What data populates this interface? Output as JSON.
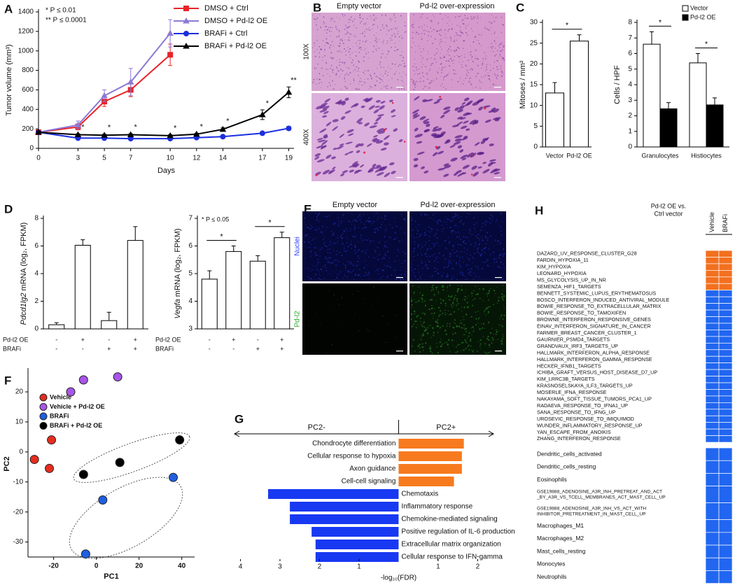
{
  "panel_labels": [
    "A",
    "B",
    "C",
    "D",
    "E",
    "F",
    "G",
    "H"
  ],
  "images": [
    {
      "title_left": "Empty vector",
      "title_right": "Pd-l2 over-expression",
      "rows": [
        "100X",
        "400X"
      ]
    },
    {
      "title_left": "Empty vector",
      "title_right": "Pd-l2 over-expression",
      "rows": [
        "Nuclei",
        "Pd-l2"
      ]
    }
  ],
  "chart_data": [
    {
      "type": "line",
      "ylabel": "Tumor volume (mm³)",
      "xlabel": "Days",
      "x": [
        0,
        3,
        5,
        7,
        10,
        12,
        14,
        17,
        19
      ],
      "xlim": [
        0,
        19.4
      ],
      "xticks": [
        0,
        3,
        5,
        7,
        10,
        12,
        14,
        17,
        19
      ],
      "ylim": [
        0,
        1400
      ],
      "yticks": [
        0,
        200,
        400,
        600,
        800,
        1000,
        1200,
        1400
      ],
      "annotations": [
        "* P ≤ 0.01",
        "** P ≤ 0.0001"
      ],
      "significance": [
        null,
        "*",
        "*",
        "*",
        "*",
        "*",
        "*",
        "*",
        "**"
      ],
      "series": [
        {
          "name": "DMSO + Ctrl",
          "color": "#e8232a",
          "marker": "square",
          "values": [
            165,
            220,
            480,
            600,
            960,
            null,
            null,
            null,
            null
          ],
          "errors": [
            10,
            30,
            50,
            70,
            110,
            null,
            null,
            null,
            null
          ]
        },
        {
          "name": "DMSO + Pd-l2 OE",
          "color": "#8e79d4",
          "marker": "triangle",
          "values": [
            165,
            240,
            540,
            680,
            1180,
            null,
            null,
            null,
            null
          ],
          "errors": [
            10,
            40,
            60,
            140,
            140,
            null,
            null,
            null,
            null
          ]
        },
        {
          "name": "BRAFi + Ctrl",
          "color": "#1b2fe0",
          "marker": "circle",
          "values": [
            165,
            105,
            105,
            100,
            100,
            110,
            120,
            155,
            205
          ],
          "errors": [
            10,
            10,
            10,
            10,
            10,
            10,
            10,
            15,
            20
          ]
        },
        {
          "name": "BRAFi + Pd-l2 OE",
          "color": "#000000",
          "marker": "triangle",
          "values": [
            165,
            140,
            135,
            140,
            130,
            145,
            195,
            345,
            575
          ],
          "errors": [
            10,
            10,
            10,
            10,
            10,
            10,
            15,
            50,
            55
          ]
        }
      ]
    },
    {
      "type": "bar",
      "ylabel": "Mitoses / mm²",
      "categories": [
        "Vector",
        "Pd-l2 OE"
      ],
      "values": [
        13,
        25.5
      ],
      "errors": [
        2.5,
        1.5
      ],
      "color": "#ffffff",
      "ylim": [
        0,
        30
      ],
      "yticks": [
        0,
        5,
        10,
        15,
        20,
        25,
        30
      ],
      "brackets": [
        {
          "label": "*",
          "from": 0,
          "to": 1
        }
      ]
    },
    {
      "type": "bar",
      "ylabel": "Cells / HPF",
      "categories": [
        "Granulocytes",
        "Histiocytes"
      ],
      "series": [
        {
          "name": "Vector",
          "color": "#ffffff",
          "values": [
            6.6,
            5.4
          ],
          "errors": [
            0.8,
            0.6
          ]
        },
        {
          "name": "Pd-l2 OE",
          "color": "#000000",
          "values": [
            2.45,
            2.7
          ],
          "errors": [
            0.4,
            0.45
          ]
        }
      ],
      "ylim": [
        0,
        8
      ],
      "yticks": [
        0,
        1,
        2,
        3,
        4,
        5,
        6,
        7,
        8
      ],
      "brackets": [
        {
          "label": "*",
          "from": 0,
          "to": 1
        },
        {
          "label": "*",
          "from": 2,
          "to": 3
        }
      ]
    },
    {
      "type": "bar",
      "ylabel_gene": "Pdcd1lg2",
      "ylabel": "mRNA (log₂, FPKM)",
      "values": [
        0.3,
        6.05,
        0.6,
        6.4
      ],
      "errors": [
        0.15,
        0.4,
        0.6,
        1.0
      ],
      "color": "#ffffff",
      "ylim": [
        0,
        8
      ],
      "yticks": [
        0,
        2,
        4,
        6,
        8
      ],
      "conditions": [
        {
          "name": "Pd-l2 OE",
          "values": [
            "-",
            "+",
            "-",
            "+"
          ]
        },
        {
          "name": "BRAFi",
          "values": [
            "-",
            "-",
            "+",
            "+"
          ]
        }
      ]
    },
    {
      "type": "bar",
      "ylabel_gene": "Vegfa",
      "ylabel": "mRNA (log₂, FPKM)",
      "values": [
        4.8,
        5.8,
        5.45,
        6.3
      ],
      "errors": [
        0.3,
        0.2,
        0.2,
        0.2
      ],
      "color": "#ffffff",
      "ylim": [
        3,
        7
      ],
      "yticks": [
        3,
        4,
        5,
        6,
        7
      ],
      "annotation": "* P ≤ 0.05",
      "brackets": [
        {
          "label": "*",
          "from": 0,
          "to": 1
        },
        {
          "label": "*",
          "from": 2,
          "to": 3
        }
      ],
      "conditions": [
        {
          "name": "Pd-l2 OE",
          "values": [
            "-",
            "+",
            "-",
            "+"
          ]
        },
        {
          "name": "BRAFi",
          "values": [
            "-",
            "-",
            "+",
            "+"
          ]
        }
      ]
    },
    {
      "type": "scatter",
      "xlabel": "PC1",
      "ylabel": "PC2",
      "xlim": [
        -32,
        46
      ],
      "xticks": [
        -20,
        0,
        20,
        40
      ],
      "ylim": [
        -35,
        27
      ],
      "yticks": [
        -30,
        -20,
        -10,
        0,
        10,
        20
      ],
      "series": [
        {
          "name": "Vehicle",
          "color": "#e52d1f",
          "x": [
            -29,
            -21,
            -22
          ],
          "values": [
            -2.5,
            4,
            -5.5
          ]
        },
        {
          "name": "Vehicle + Pd-l2 OE",
          "color": "#a855e8",
          "x": [
            -12,
            -6,
            10
          ],
          "values": [
            20,
            24,
            25
          ]
        },
        {
          "name": "BRAFi",
          "color": "#1f5fe0",
          "x": [
            3,
            36,
            -5
          ],
          "values": [
            -16,
            -8.5,
            -34
          ]
        },
        {
          "name": "BRAFi + Pd-l2 OE",
          "color": "#000000",
          "x": [
            -6,
            11,
            39
          ],
          "values": [
            -7.5,
            -3.5,
            4
          ]
        }
      ]
    },
    {
      "type": "barh",
      "xlabel": "-log₁₀(FDR)",
      "direction_labels": [
        "PC2-",
        "PC2+"
      ],
      "categories": [
        "Chondrocyte differentiation",
        "Cellular response to hypoxia",
        "Axon guidance",
        "Cell-cell signaling",
        "Chemotaxis",
        "Inflammatory response",
        "Chemokine-mediated signaling",
        "Positive regulation of IL-6 production",
        "Extracellular matrix organization",
        "Cellular response to IFN-gamma"
      ],
      "values": [
        1.65,
        1.6,
        1.6,
        1.4,
        -3.3,
        -2.75,
        -2.75,
        -2.2,
        -2.1,
        -2.1
      ],
      "positive_color": "#f77a1e",
      "negative_color": "#1839f2",
      "xlim": [
        -4.15,
        2.4
      ],
      "xticks": [
        {
          "value": -4,
          "label": "4"
        },
        {
          "value": -3,
          "label": "3"
        },
        {
          "value": -2,
          "label": "2"
        },
        {
          "value": -1,
          "label": "1"
        },
        1,
        2
      ]
    },
    {
      "type": "heatmap",
      "title_lines": [
        "Pd-l2 OE vs.",
        "Ctrl vector"
      ],
      "columns": [
        "Vehicle",
        "BRAFi"
      ],
      "groups": [
        {
          "color": "#f2701f",
          "rows": [
            "DAZARD_UV_RESPONSE_CLUSTER_G28",
            "FARDIN_HYPOXIA_11",
            "KIM_HYPOXIA",
            "LEONARD_HYPOXIA",
            "MS_GLYCOLYSIS_UP_IN_NR",
            "SEMENZA_HIF1_TARGETS"
          ]
        },
        {
          "color": "#2166f0",
          "rows": [
            "BENNETT_SYSTEMIC_LUPUS_ERYTHEMATOSUS",
            "BOSCO_INTERFERON_INDUCED_ANTIVIRAL_MODULE",
            "BOWIE_RESPONSE_TO_EXTRACELLULAR_MATRIX",
            "BOWIE_RESPONSE_TO_TAMOXIFEN",
            "BROWNE_INTERFERON_RESPONSIVE_GENES",
            "EINAV_INTERFERON_SIGNATURE_IN_CANCER",
            "FARMER_BREAST_CANCER_CLUSTER_1",
            "GAURNIER_PSMD4_TARGETS",
            "GRANDVAUX_IRF3_TARGETS_UP",
            "HALLMARK_INTERFERON_ALPHA_RESPONSE",
            "HALLMARK_INTERFERON_GAMMA_RESPONSE",
            "HECKER_IFNB1_TARGETS",
            "ICHIBA_GRAFT_VERSUS_HOST_DISEASE_D7_UP",
            "KIM_LRRC3B_TARGETS",
            "KRASNOSELSKAYA_ILF3_TARGETS_UP",
            "MOSERLE_IFNA_RESPONSE",
            "NAKAYAMA_SOFT_TISSUE_TUMORS_PCA1_UP",
            "RADAEVA_RESPONSE_TO_IFNA1_UP",
            "SANA_RESPONSE_TO_IFNG_UP",
            "UROSEVIC_RESPONSE_TO_IMIQUIMOD",
            "WUNDER_INFLAMMATORY_RESPONSE_UP",
            "YAN_ESCAPE_FROM_ANOIKIS",
            "ZHANG_INTERFERON_RESPONSE"
          ]
        },
        {
          "color": "#2166f0",
          "rows": [
            "Dendritic_cells_activated",
            "Dendritic_cells_resting",
            "Eosinophils",
            [
              "GSE19888_ADENOSINE_A3R_INH_PRETREAT_AND_ACT",
              "_BY_A3R_VS_TCELL_MEMBRANES_ACT_MAST_CELL_UP"
            ],
            [
              "GSE19888_ADENOSINE_A3R_INH_VS_ACT_WITH",
              "INHIBITOR_PRETREATMENT_IN_MAST_CELL_UP"
            ],
            "Macrophages_M1",
            "Macrophages_M2",
            "Mast_cells_resting",
            "Monocytes",
            "Neutrophils"
          ]
        }
      ]
    }
  ]
}
